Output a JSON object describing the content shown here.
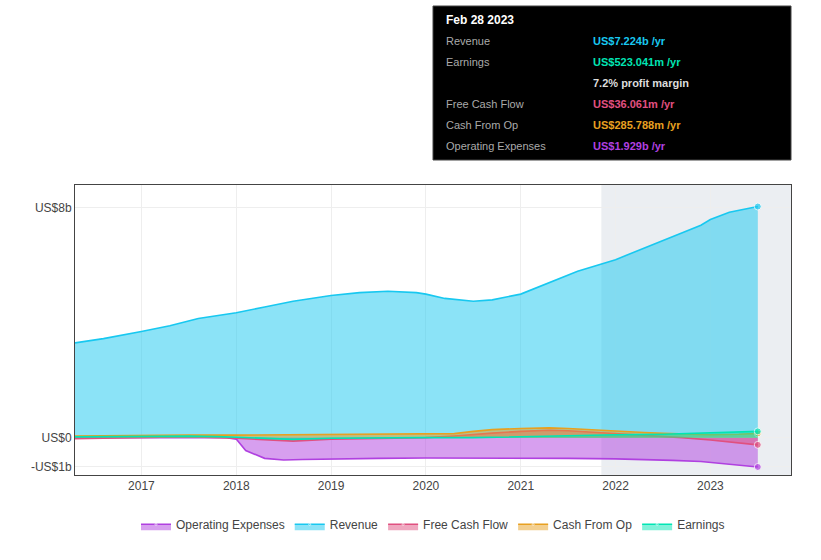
{
  "chart_data": {
    "type": "area",
    "xlim": [
      2016.3,
      2023.85
    ],
    "xticks": [
      2017,
      2018,
      2019,
      2020,
      2021,
      2022,
      2023
    ],
    "ylim": [
      -1.3,
      8.8
    ],
    "yticks": [
      {
        "value": 8,
        "label": "US$8b"
      },
      {
        "value": 0,
        "label": "US$0"
      },
      {
        "value": -1,
        "label": "-US$1b"
      }
    ],
    "grid": true,
    "legend": "bottom",
    "highlight_x": [
      2021.85,
      2023.85
    ],
    "series": [
      {
        "name": "Operating Expenses",
        "color": "#b040e0",
        "x": [
          2016.3,
          2017.0,
          2017.5,
          2017.9,
          2018.0,
          2018.1,
          2018.3,
          2018.5,
          2018.7,
          2019.0,
          2019.5,
          2020.0,
          2020.5,
          2021.0,
          2021.5,
          2022.0,
          2022.3,
          2022.6,
          2022.9,
          2023.0,
          2023.2,
          2023.5
        ],
        "values": [
          0.0,
          0.0,
          0.0,
          0.0,
          -0.05,
          -0.45,
          -0.72,
          -0.78,
          -0.76,
          -0.74,
          -0.72,
          -0.71,
          -0.71,
          -0.72,
          -0.72,
          -0.74,
          -0.76,
          -0.79,
          -0.83,
          -0.86,
          -0.92,
          -1.02
        ]
      },
      {
        "name": "Revenue",
        "color": "#18c8f0",
        "x": [
          2016.3,
          2016.6,
          2017.0,
          2017.3,
          2017.6,
          2018.0,
          2018.3,
          2018.6,
          2019.0,
          2019.3,
          2019.6,
          2019.9,
          2020.0,
          2020.2,
          2020.5,
          2020.7,
          2021.0,
          2021.3,
          2021.6,
          2022.0,
          2022.3,
          2022.6,
          2022.9,
          2023.0,
          2023.2,
          2023.5
        ],
        "values": [
          3.3,
          3.45,
          3.7,
          3.9,
          4.15,
          4.35,
          4.55,
          4.75,
          4.95,
          5.05,
          5.1,
          5.05,
          5.0,
          4.85,
          4.75,
          4.8,
          5.0,
          5.4,
          5.8,
          6.2,
          6.6,
          7.0,
          7.4,
          7.6,
          7.85,
          8.05
        ]
      },
      {
        "name": "Free Cash Flow",
        "color": "#e05080",
        "x": [
          2016.3,
          2016.6,
          2017.0,
          2017.5,
          2018.0,
          2018.3,
          2018.6,
          2019.0,
          2019.5,
          2020.0,
          2020.3,
          2020.5,
          2020.7,
          2021.0,
          2021.3,
          2021.5,
          2021.7,
          2022.0,
          2022.3,
          2022.5,
          2022.7,
          2023.0,
          2023.3,
          2023.5
        ],
        "values": [
          -0.04,
          -0.02,
          0.01,
          0.03,
          -0.02,
          -0.08,
          -0.12,
          -0.05,
          -0.02,
          0.0,
          0.06,
          0.12,
          0.16,
          0.22,
          0.26,
          0.24,
          0.2,
          0.15,
          0.1,
          0.05,
          0.0,
          -0.08,
          -0.18,
          -0.25
        ]
      },
      {
        "name": "Cash From Op",
        "color": "#e8a020",
        "x": [
          2016.3,
          2016.6,
          2017.0,
          2017.5,
          2018.0,
          2018.5,
          2019.0,
          2019.5,
          2020.0,
          2020.3,
          2020.5,
          2020.7,
          2021.0,
          2021.3,
          2021.5,
          2021.7,
          2022.0,
          2022.3,
          2022.5,
          2022.7,
          2023.0,
          2023.3,
          2023.5
        ],
        "values": [
          0.06,
          0.07,
          0.08,
          0.09,
          0.09,
          0.1,
          0.1,
          0.11,
          0.11,
          0.14,
          0.22,
          0.28,
          0.32,
          0.34,
          0.32,
          0.28,
          0.22,
          0.18,
          0.15,
          0.12,
          0.1,
          0.12,
          0.15
        ]
      },
      {
        "name": "Earnings",
        "color": "#00e5b4",
        "x": [
          2016.3,
          2016.6,
          2017.0,
          2017.5,
          2017.8,
          2018.0,
          2018.3,
          2018.6,
          2019.0,
          2019.5,
          2020.0,
          2020.5,
          2021.0,
          2021.5,
          2022.0,
          2022.5,
          2022.8,
          2023.0,
          2023.5
        ],
        "values": [
          0.03,
          0.04,
          0.05,
          0.06,
          0.04,
          0.02,
          -0.03,
          -0.06,
          -0.02,
          0.0,
          0.0,
          0.0,
          0.04,
          0.07,
          0.1,
          0.12,
          0.15,
          0.18,
          0.22
        ]
      }
    ],
    "annotations": [
      {
        "text": "Feb 28 2023"
      },
      {
        "label": "Revenue",
        "text": "US$7.224b /yr",
        "color": "#18c8f0"
      },
      {
        "label": "Earnings",
        "text": "US$523.041m /yr",
        "color": "#00e5b4"
      },
      {
        "text": "7.2% profit margin",
        "color": "#dddddd"
      },
      {
        "label": "Free Cash Flow",
        "text": "US$36.061m /yr",
        "color": "#e05080"
      },
      {
        "label": "Cash From Op",
        "text": "US$285.788m /yr",
        "color": "#e8a020"
      },
      {
        "label": "Operating Expenses",
        "text": "US$1.929b /yr",
        "color": "#b040e0"
      }
    ]
  }
}
